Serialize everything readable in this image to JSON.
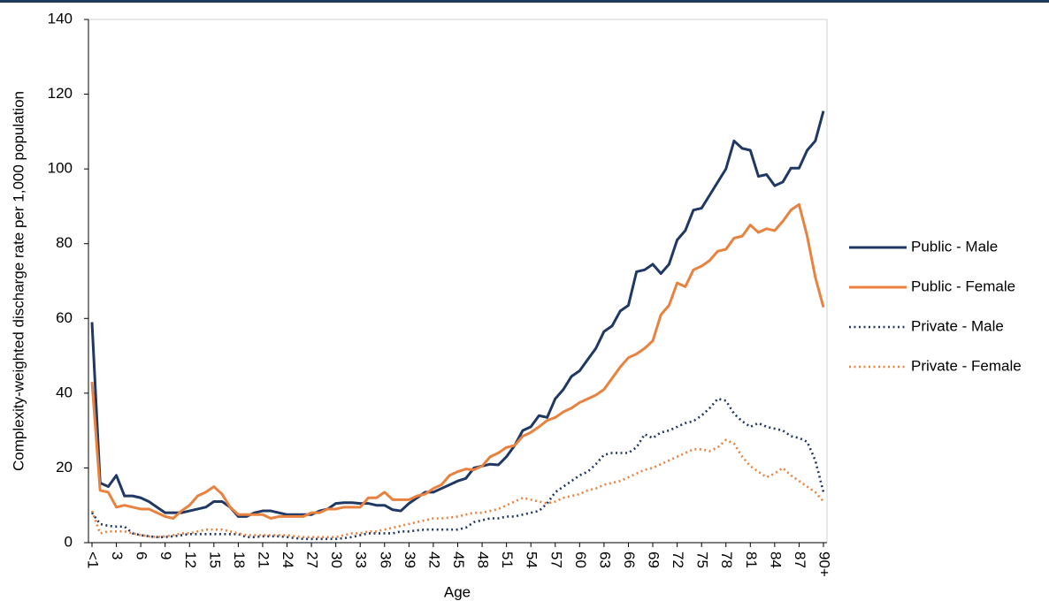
{
  "chart_data": {
    "type": "line",
    "x_label": "Age",
    "y_label": "Complexity-weighted discharge rate per 1,000 population",
    "categories": [
      "<1",
      null,
      null,
      "3",
      null,
      null,
      "6",
      null,
      null,
      "9",
      null,
      null,
      "12",
      null,
      null,
      "15",
      null,
      null,
      "18",
      null,
      null,
      "21",
      null,
      null,
      "24",
      null,
      null,
      "27",
      null,
      null,
      "30",
      null,
      null,
      "33",
      null,
      null,
      "36",
      null,
      null,
      "39",
      null,
      null,
      "42",
      null,
      null,
      "45",
      null,
      null,
      "48",
      null,
      null,
      "51",
      null,
      null,
      "54",
      null,
      null,
      "57",
      null,
      null,
      "60",
      null,
      null,
      "63",
      null,
      null,
      "66",
      null,
      null,
      "69",
      null,
      null,
      "72",
      null,
      null,
      "75",
      null,
      null,
      "78",
      null,
      null,
      "81",
      null,
      null,
      "84",
      null,
      null,
      "87",
      null,
      null,
      "90+"
    ],
    "ylim": [
      0,
      140
    ],
    "yticks": [
      0,
      20,
      40,
      60,
      80,
      100,
      120,
      140
    ],
    "grid": false,
    "legend": "right",
    "series": [
      {
        "name": "Public - Male",
        "color": "#203864",
        "style": "solid",
        "values": [
          59,
          16,
          15,
          18,
          12.5,
          12.5,
          12,
          11,
          9.5,
          8,
          8,
          8,
          8.5,
          9,
          9.5,
          11,
          11,
          9.5,
          7,
          7,
          8,
          8.5,
          8.5,
          8,
          7.5,
          7.5,
          7.5,
          7.5,
          8.5,
          9,
          10.5,
          10.7,
          10.7,
          10.5,
          10.5,
          10,
          10,
          8.8,
          8.5,
          10.5,
          12,
          13.5,
          13.5,
          14.5,
          15.5,
          16.5,
          17.2,
          20,
          20.5,
          21,
          20.8,
          23,
          26,
          30,
          31,
          34,
          33.5,
          38.5,
          41,
          44.5,
          46,
          49,
          52,
          56.5,
          58,
          62,
          63.5,
          72.5,
          73,
          74.5,
          72,
          74.5,
          81,
          83.5,
          89,
          89.5,
          93,
          96.5,
          100,
          107.5,
          105.5,
          105,
          98,
          98.5,
          95.5,
          96.5,
          100.2,
          100.2,
          105,
          107.5,
          115.5
        ]
      },
      {
        "name": "Public - Female",
        "color": "#E8823E",
        "style": "solid",
        "values": [
          43,
          14,
          13.5,
          9.5,
          10,
          9.5,
          9,
          9,
          8,
          7,
          6.5,
          8.5,
          10,
          12.5,
          13.5,
          15,
          13,
          9.5,
          7.5,
          7.5,
          7.5,
          7.5,
          6.5,
          7,
          7,
          7,
          7,
          8,
          8,
          9,
          9,
          9.5,
          9.5,
          9.5,
          12,
          12,
          13.5,
          11.5,
          11.5,
          11.5,
          12.5,
          13,
          14.5,
          15.5,
          18,
          19,
          19.7,
          19.5,
          20.5,
          23,
          24,
          25.5,
          26,
          28.5,
          29.5,
          31,
          32.7,
          33.5,
          35,
          36,
          37.5,
          38.5,
          39.5,
          41,
          44,
          47,
          49.5,
          50.5,
          52,
          54,
          61,
          63.5,
          69.5,
          68.5,
          73,
          74,
          75.5,
          78,
          78.5,
          81.5,
          82,
          85,
          83,
          84,
          83.5,
          86,
          89,
          90.5,
          82,
          71,
          63
        ]
      },
      {
        "name": "Private - Male",
        "color": "#203864",
        "style": "dotted",
        "values": [
          8,
          5,
          4.5,
          4.3,
          4.3,
          2.5,
          2,
          1.7,
          1.5,
          1.5,
          1.7,
          2,
          2.3,
          2.3,
          2.3,
          2.3,
          2.3,
          2.3,
          2.3,
          1.5,
          1.5,
          1.7,
          1.7,
          1.7,
          1.5,
          1.2,
          1,
          1,
          1,
          1,
          1,
          1.2,
          1.5,
          2,
          2.5,
          2.5,
          2.5,
          2.5,
          3,
          3,
          3.3,
          3.5,
          3.5,
          3.5,
          3.5,
          3.5,
          4,
          5.5,
          6,
          6.5,
          6.5,
          7,
          7,
          7.5,
          8,
          8.5,
          10.5,
          13.5,
          15,
          16.5,
          18,
          19,
          21,
          23.5,
          24,
          24,
          24,
          25.5,
          29,
          28,
          29.5,
          30,
          31,
          32,
          32.5,
          34,
          36,
          38.5,
          38,
          34.5,
          32.5,
          31,
          32,
          31,
          30.5,
          30,
          28.5,
          28,
          27,
          22,
          13.5
        ]
      },
      {
        "name": "Private - Female",
        "color": "#E8823E",
        "style": "dotted",
        "values": [
          8.5,
          2.5,
          3,
          3,
          3,
          2.5,
          2,
          1.7,
          1.5,
          1.7,
          2,
          2.5,
          2.5,
          3,
          3.5,
          3.5,
          3.5,
          3,
          2.5,
          2,
          2,
          2,
          2,
          2,
          2,
          1.7,
          1.5,
          1.5,
          1.5,
          1.5,
          1.5,
          2,
          2.5,
          2.5,
          3,
          3,
          3.5,
          4,
          4.5,
          5,
          5.5,
          6,
          6.5,
          6.5,
          6.7,
          7,
          7.5,
          8,
          8,
          8.5,
          9,
          10,
          11,
          12,
          11.5,
          11,
          10.5,
          11,
          12,
          12.5,
          13,
          14,
          14.5,
          15.5,
          16,
          16.5,
          17.5,
          18.5,
          19.5,
          20,
          21,
          22,
          23,
          24,
          25,
          25,
          24.5,
          25.5,
          27.5,
          26.5,
          23,
          20.5,
          19,
          17.5,
          18.5,
          20,
          18,
          16.5,
          15,
          13.5,
          11
        ]
      }
    ]
  }
}
